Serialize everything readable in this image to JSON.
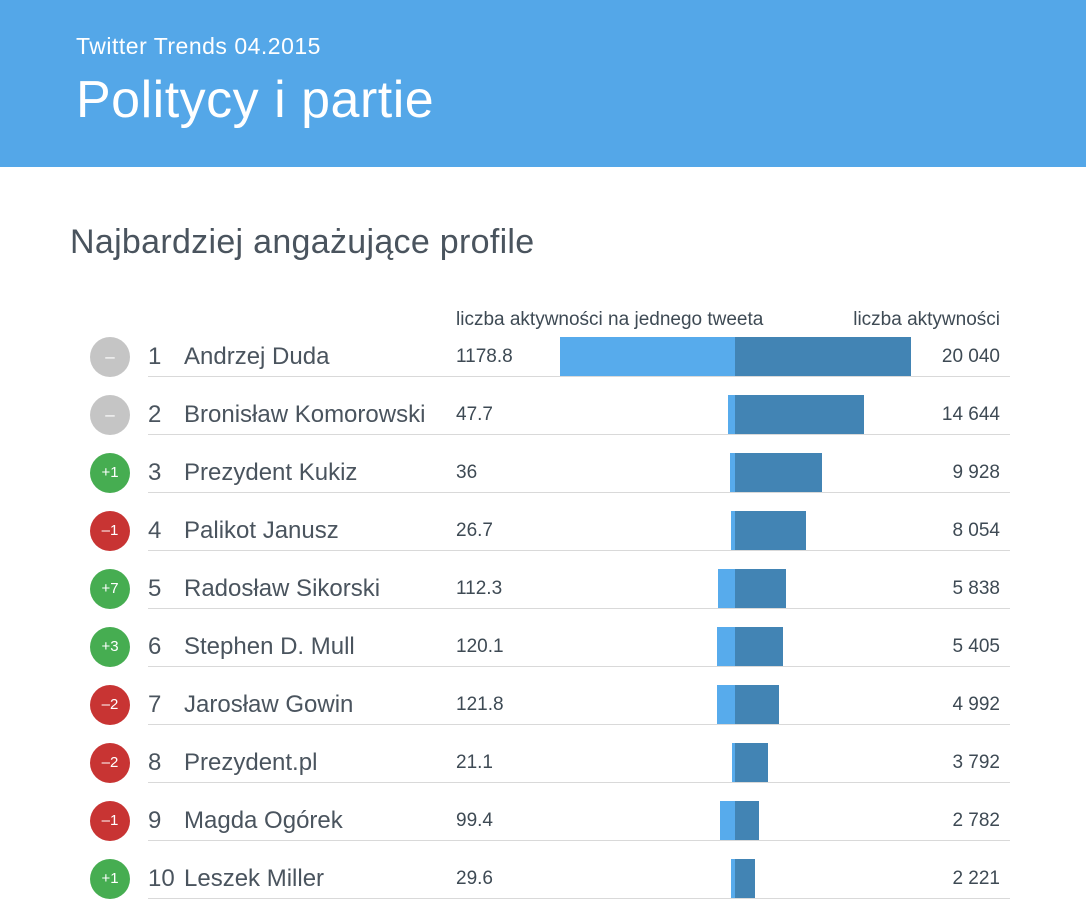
{
  "header": {
    "eyebrow": "Twitter Trends 04.2015",
    "title": "Politycy i partie"
  },
  "section": {
    "title": "Najbardziej angażujące profile"
  },
  "table": {
    "col_left_header": "liczba aktywności na jednego tweeta",
    "col_right_header": "liczba aktywności",
    "rows": [
      {
        "rank": "1",
        "change": "–",
        "change_type": "same",
        "name": "Andrzej Duda",
        "per_tweet": "1178.8",
        "per_tweet_value": 1178.8,
        "total": "20 040",
        "total_value": 20040
      },
      {
        "rank": "2",
        "change": "–",
        "change_type": "same",
        "name": "Bronisław Komorowski",
        "per_tweet": "47.7",
        "per_tweet_value": 47.7,
        "total": "14 644",
        "total_value": 14644
      },
      {
        "rank": "3",
        "change": "+1",
        "change_type": "up",
        "name": "Prezydent Kukiz",
        "per_tweet": "36",
        "per_tweet_value": 36,
        "total": "9 928",
        "total_value": 9928
      },
      {
        "rank": "4",
        "change": "–1",
        "change_type": "down",
        "name": "Palikot Janusz",
        "per_tweet": "26.7",
        "per_tweet_value": 26.7,
        "total": "8 054",
        "total_value": 8054
      },
      {
        "rank": "5",
        "change": "+7",
        "change_type": "up",
        "name": "Radosław Sikorski",
        "per_tweet": "112.3",
        "per_tweet_value": 112.3,
        "total": "5 838",
        "total_value": 5838
      },
      {
        "rank": "6",
        "change": "+3",
        "change_type": "up",
        "name": "Stephen D. Mull",
        "per_tweet": "120.1",
        "per_tweet_value": 120.1,
        "total": "5 405",
        "total_value": 5405
      },
      {
        "rank": "7",
        "change": "–2",
        "change_type": "down",
        "name": "Jarosław Gowin",
        "per_tweet": "121.8",
        "per_tweet_value": 121.8,
        "total": "4 992",
        "total_value": 4992
      },
      {
        "rank": "8",
        "change": "–2",
        "change_type": "down",
        "name": "Prezydent.pl",
        "per_tweet": "21.1",
        "per_tweet_value": 21.1,
        "total": "3 792",
        "total_value": 3792
      },
      {
        "rank": "9",
        "change": "–1",
        "change_type": "down",
        "name": "Magda Ogórek",
        "per_tweet": "99.4",
        "per_tweet_value": 99.4,
        "total": "2 782",
        "total_value": 2782
      },
      {
        "rank": "10",
        "change": "+1",
        "change_type": "up",
        "name": "Leszek Miller",
        "per_tweet": "29.6",
        "per_tweet_value": 29.6,
        "total": "2 221",
        "total_value": 2221
      }
    ]
  },
  "colors": {
    "header_bg": "#54A7E8",
    "bar_light": "#57ABEC",
    "bar_dark": "#4284B4",
    "badge_same": "#C5C5C5",
    "badge_up": "#46AD51",
    "badge_down": "#C83433",
    "text_primary": "#4A545E",
    "text_values": "#3E4A54",
    "divider": "#D9D9D9"
  },
  "chart_data": {
    "type": "bar",
    "orientation": "horizontal-diverging",
    "title": "Najbardziej angażujące profile",
    "subtitle": "Twitter Trends 04.2015 — Politycy i partie",
    "categories": [
      "Andrzej Duda",
      "Bronisław Komorowski",
      "Prezydent Kukiz",
      "Palikot Janusz",
      "Radosław Sikorski",
      "Stephen D. Mull",
      "Jarosław Gowin",
      "Prezydent.pl",
      "Magda Ogórek",
      "Leszek Miller"
    ],
    "series": [
      {
        "name": "liczba aktywności na jednego tweeta",
        "color": "#57ABEC",
        "direction": "left",
        "values": [
          1178.8,
          47.7,
          36,
          26.7,
          112.3,
          120.1,
          121.8,
          21.1,
          99.4,
          29.6
        ]
      },
      {
        "name": "liczba aktywności",
        "color": "#4284B4",
        "direction": "right",
        "values": [
          20040,
          14644,
          9928,
          8054,
          5838,
          5405,
          4992,
          3792,
          2782,
          2221
        ]
      }
    ],
    "rank_changes": [
      "0",
      "0",
      "+1",
      "-1",
      "+7",
      "+3",
      "-2",
      "-2",
      "-1",
      "+1"
    ],
    "legend_position": "top",
    "grid": false,
    "value_labels": "both-sides"
  }
}
